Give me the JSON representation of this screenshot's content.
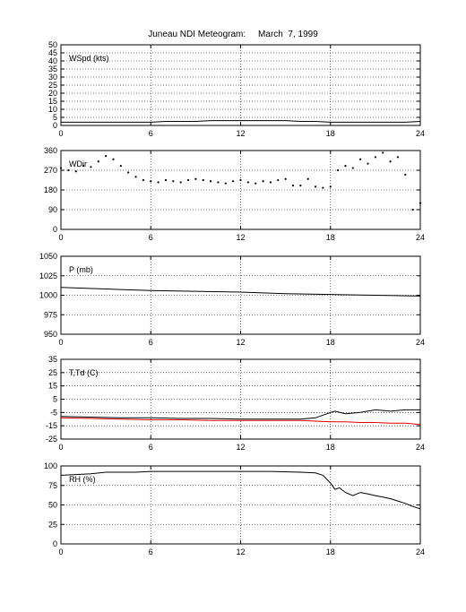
{
  "title": "Juneau NDI Meteogram:     March  7, 1999",
  "chart_data": [
    {
      "type": "line",
      "label": "WSpd (kts)",
      "xlim": [
        0,
        24
      ],
      "ylim": [
        0,
        50
      ],
      "xticks": [
        0,
        6,
        12,
        18,
        24
      ],
      "yticks": [
        0,
        5,
        10,
        15,
        20,
        25,
        30,
        35,
        40,
        45,
        50
      ],
      "grid": true,
      "series": [
        {
          "color": "#000000",
          "style": "line",
          "x": [
            0,
            1,
            2,
            3,
            4,
            5,
            6,
            7,
            8,
            9,
            10,
            11,
            12,
            13,
            14,
            15,
            16,
            17,
            18,
            19,
            20,
            21,
            22,
            23,
            24
          ],
          "y": [
            2,
            2,
            2,
            2,
            2,
            2,
            2,
            2.5,
            2.5,
            2.5,
            3,
            3,
            3,
            3,
            3,
            3,
            2.5,
            2.5,
            2,
            2,
            2,
            2,
            2,
            2,
            2.5
          ]
        }
      ]
    },
    {
      "type": "scatter",
      "label": "WDir",
      "xlim": [
        0,
        24
      ],
      "ylim": [
        0,
        360
      ],
      "xticks": [
        0,
        6,
        12,
        18,
        24
      ],
      "yticks": [
        0,
        90,
        180,
        270,
        360
      ],
      "grid": true,
      "series": [
        {
          "color": "#000000",
          "style": "dots",
          "x": [
            0,
            0.5,
            1,
            1.5,
            2,
            2.5,
            3,
            3.5,
            4,
            4.5,
            5,
            5.5,
            6,
            6.5,
            7,
            7.5,
            8,
            8.5,
            9,
            9.5,
            10,
            10.5,
            11,
            11.5,
            12,
            12.5,
            13,
            13.5,
            14,
            14.5,
            15,
            15.5,
            16,
            16.5,
            17,
            17.5,
            18,
            18.5,
            19,
            19.5,
            20,
            20.5,
            21,
            21.5,
            22,
            22.5,
            23,
            23.5,
            24
          ],
          "y": [
            280,
            270,
            265,
            290,
            285,
            310,
            335,
            320,
            290,
            260,
            240,
            225,
            220,
            215,
            225,
            220,
            215,
            225,
            230,
            225,
            220,
            215,
            210,
            220,
            225,
            215,
            210,
            220,
            215,
            225,
            230,
            200,
            200,
            230,
            195,
            190,
            195,
            270,
            290,
            280,
            320,
            300,
            330,
            350,
            310,
            330,
            250,
            90,
            120
          ]
        }
      ]
    },
    {
      "type": "line",
      "label": "P (mb)",
      "xlim": [
        0,
        24
      ],
      "ylim": [
        950,
        1050
      ],
      "xticks": [
        0,
        6,
        12,
        18,
        24
      ],
      "yticks": [
        950,
        975,
        1000,
        1025,
        1050
      ],
      "grid": true,
      "series": [
        {
          "color": "#000000",
          "style": "line",
          "x": [
            0,
            3,
            6,
            9,
            12,
            15,
            18,
            21,
            24
          ],
          "y": [
            1010,
            1008,
            1006,
            1005,
            1004,
            1002,
            1001,
            1000,
            999
          ]
        }
      ]
    },
    {
      "type": "line",
      "label": "T,Td (C)",
      "xlim": [
        0,
        24
      ],
      "ylim": [
        -25,
        35
      ],
      "xticks": [
        0,
        6,
        12,
        18,
        24
      ],
      "yticks": [
        -25,
        -15,
        -5,
        5,
        15,
        25,
        35
      ],
      "grid": true,
      "series": [
        {
          "color": "#000000",
          "style": "line",
          "x": [
            0,
            2,
            4,
            6,
            8,
            10,
            12,
            14,
            16,
            17,
            18,
            18.3,
            19,
            20,
            21,
            22,
            23,
            24
          ],
          "y": [
            -8,
            -8.5,
            -9,
            -9,
            -9.5,
            -9.5,
            -10,
            -10,
            -10,
            -9,
            -5,
            -4,
            -6,
            -5,
            -3,
            -4,
            -3,
            -3
          ]
        },
        {
          "color": "#e00000",
          "style": "line",
          "x": [
            0,
            2,
            4,
            6,
            8,
            10,
            12,
            14,
            16,
            17,
            18,
            19,
            20,
            21,
            22,
            23,
            24
          ],
          "y": [
            -9,
            -9.5,
            -10,
            -10.5,
            -10.5,
            -11,
            -11,
            -11,
            -11,
            -11.5,
            -12,
            -12,
            -12.5,
            -12.5,
            -13,
            -13,
            -14
          ]
        }
      ]
    },
    {
      "type": "line",
      "label": "RH (%)",
      "xlim": [
        0,
        24
      ],
      "ylim": [
        0,
        100
      ],
      "xticks": [
        0,
        6,
        12,
        18,
        24
      ],
      "yticks": [
        0,
        25,
        50,
        75,
        100
      ],
      "grid": true,
      "series": [
        {
          "color": "#000000",
          "style": "line",
          "x": [
            0,
            1,
            2,
            3,
            4,
            5,
            6,
            8,
            10,
            12,
            14,
            16,
            17,
            17.5,
            18,
            18.3,
            18.6,
            19,
            19.5,
            20,
            20.5,
            21,
            21.5,
            22,
            22.5,
            23,
            23.5,
            24
          ],
          "y": [
            88,
            89,
            90,
            92,
            92,
            92,
            93,
            93,
            93,
            93,
            93,
            92,
            91,
            88,
            78,
            70,
            72,
            66,
            62,
            66,
            64,
            62,
            60,
            58,
            55,
            52,
            48,
            45
          ]
        }
      ]
    }
  ]
}
